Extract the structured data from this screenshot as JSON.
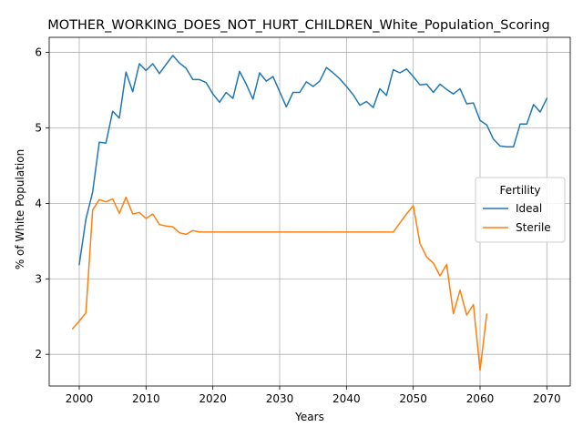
{
  "chart_data": {
    "type": "line",
    "title": "MOTHER_WORKING_DOES_NOT_HURT_CHILDREN_White_Population_Scoring",
    "xlabel": "Years",
    "ylabel": "% of White Population",
    "xlim": [
      1995.5,
      2073.5
    ],
    "ylim": [
      1.58,
      6.2
    ],
    "xticks": [
      2000,
      2010,
      2020,
      2030,
      2040,
      2050,
      2060,
      2070
    ],
    "yticks": [
      2,
      3,
      4,
      5,
      6
    ],
    "grid": true,
    "legend": {
      "title": "Fertility",
      "position": "center-right"
    },
    "series": [
      {
        "name": "Ideal",
        "color": "#1f77b4",
        "x": [
          2000,
          2001,
          2002,
          2003,
          2004,
          2005,
          2006,
          2007,
          2008,
          2009,
          2010,
          2011,
          2012,
          2013,
          2014,
          2015,
          2016,
          2017,
          2018,
          2019,
          2020,
          2021,
          2022,
          2023,
          2024,
          2025,
          2026,
          2027,
          2028,
          2029,
          2030,
          2031,
          2032,
          2033,
          2034,
          2035,
          2036,
          2037,
          2038,
          2039,
          2040,
          2041,
          2042,
          2043,
          2044,
          2045,
          2046,
          2047,
          2048,
          2049,
          2050,
          2051,
          2052,
          2053,
          2054,
          2055,
          2056,
          2057,
          2058,
          2059,
          2060,
          2061,
          2062,
          2063,
          2064,
          2065,
          2066,
          2067,
          2068,
          2069,
          2070
        ],
        "y": [
          3.19,
          3.79,
          4.15,
          4.81,
          4.8,
          5.22,
          5.13,
          5.74,
          5.48,
          5.85,
          5.76,
          5.85,
          5.72,
          5.84,
          5.96,
          5.86,
          5.79,
          5.64,
          5.64,
          5.6,
          5.45,
          5.34,
          5.47,
          5.39,
          5.75,
          5.58,
          5.38,
          5.73,
          5.62,
          5.68,
          5.48,
          5.28,
          5.47,
          5.47,
          5.61,
          5.55,
          5.62,
          5.8,
          5.73,
          5.65,
          5.55,
          5.44,
          5.3,
          5.35,
          5.27,
          5.52,
          5.43,
          5.77,
          5.73,
          5.78,
          5.68,
          5.57,
          5.58,
          5.47,
          5.58,
          5.51,
          5.45,
          5.52,
          5.32,
          5.33,
          5.1,
          5.04,
          4.85,
          4.76,
          4.75,
          4.75,
          5.05,
          5.05,
          5.31,
          5.21,
          5.39
        ]
      },
      {
        "name": "Sterile",
        "color": "#ff7f0e",
        "x": [
          1999,
          2000,
          2001,
          2002,
          2003,
          2004,
          2005,
          2006,
          2007,
          2008,
          2009,
          2010,
          2011,
          2012,
          2013,
          2014,
          2015,
          2016,
          2017,
          2018,
          2019,
          2020,
          2021,
          2022,
          2023,
          2024,
          2025,
          2026,
          2027,
          2028,
          2029,
          2030,
          2031,
          2032,
          2033,
          2034,
          2035,
          2036,
          2037,
          2038,
          2039,
          2040,
          2041,
          2042,
          2043,
          2044,
          2045,
          2046,
          2047,
          2048,
          2049,
          2050,
          2051,
          2052,
          2053,
          2054,
          2055,
          2056,
          2057,
          2058,
          2059,
          2060,
          2061
        ],
        "y": [
          2.34,
          2.44,
          2.55,
          3.91,
          4.05,
          4.02,
          4.06,
          3.87,
          4.08,
          3.86,
          3.88,
          3.8,
          3.86,
          3.72,
          3.7,
          3.69,
          3.61,
          3.59,
          3.64,
          3.62,
          3.62,
          3.62,
          3.62,
          3.62,
          3.62,
          3.62,
          3.62,
          3.62,
          3.62,
          3.62,
          3.62,
          3.62,
          3.62,
          3.62,
          3.62,
          3.62,
          3.62,
          3.62,
          3.62,
          3.62,
          3.62,
          3.62,
          3.62,
          3.62,
          3.62,
          3.62,
          3.62,
          3.62,
          3.62,
          3.74,
          3.86,
          3.97,
          3.47,
          3.29,
          3.21,
          3.04,
          3.19,
          2.54,
          2.85,
          2.52,
          2.66,
          1.79,
          2.53
        ]
      }
    ]
  }
}
